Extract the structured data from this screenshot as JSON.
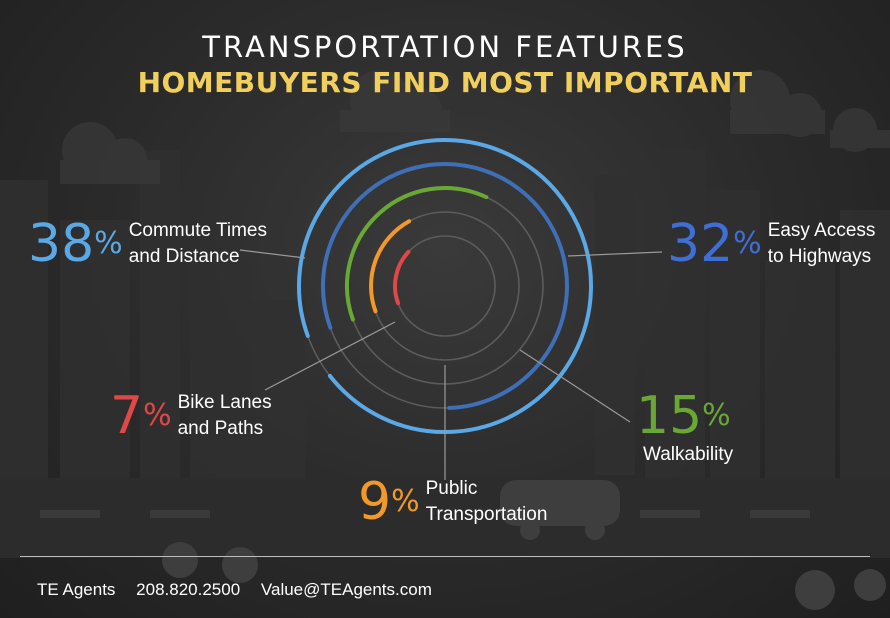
{
  "header": {
    "title_line1": "TRANSPORTATION FEATURES",
    "title_line2": "HOMEBUYERS FIND MOST IMPORTANT"
  },
  "colors": {
    "commute": "#5aa9e6",
    "highways": "#3f6fb6",
    "walkability": "#6aa836",
    "public_transport": "#f19a2a",
    "bike": "#e04848",
    "title_accent": "#f1cf5c"
  },
  "chart_data": {
    "type": "radial-bar",
    "max": 40,
    "series": [
      {
        "key": "commute",
        "label_line1": "Commute Times",
        "label_line2": "and Distance",
        "value": 38,
        "display": "38"
      },
      {
        "key": "highways",
        "label_line1": "Easy Access",
        "label_line2": "to Highways",
        "value": 32,
        "display": "32"
      },
      {
        "key": "walkability",
        "label_line1": "Walkability",
        "label_line2": "",
        "value": 15,
        "display": "15"
      },
      {
        "key": "public_transport",
        "label_line1": "Public",
        "label_line2": "Transportation",
        "value": 9,
        "display": "9"
      },
      {
        "key": "bike",
        "label_line1": "Bike Lanes",
        "label_line2": "and Paths",
        "value": 7,
        "display": "7"
      }
    ],
    "percent_sign": "%"
  },
  "footer": {
    "company": "TE Agents",
    "phone": "208.820.2500",
    "email": "Value@TEAgents.com"
  }
}
